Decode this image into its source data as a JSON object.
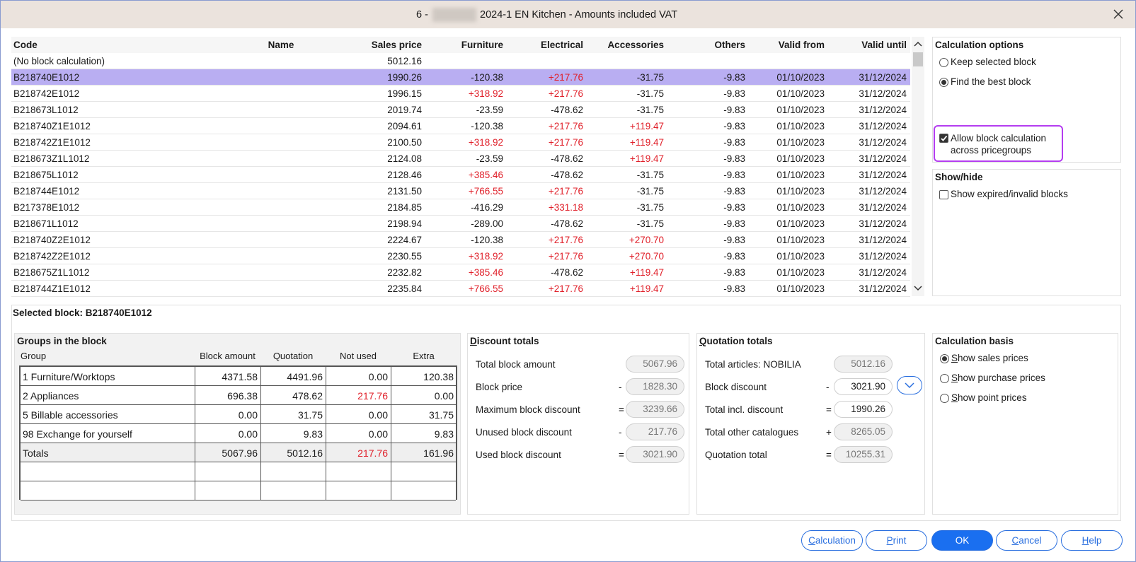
{
  "window": {
    "title_prefix": "6 -",
    "title": "2024-1 EN Kitchen - Amounts included VAT"
  },
  "blocks_table": {
    "columns": [
      "Code",
      "Name",
      "Sales price",
      "Furniture",
      "Electrical",
      "Accessories",
      "Others",
      "Valid from",
      "Valid until"
    ],
    "selected_row": 1,
    "rows": [
      [
        "(No block calculation)",
        null,
        "5012.16",
        null,
        null,
        null,
        null,
        null,
        null
      ],
      [
        "B218740E1012",
        null,
        "1990.26",
        "-120.38",
        "+217.76",
        "-31.75",
        "-9.83",
        "01/10/2023",
        "31/12/2024"
      ],
      [
        "B218742E1012",
        null,
        "1996.15",
        "+318.92",
        "+217.76",
        "-31.75",
        "-9.83",
        "01/10/2023",
        "31/12/2024"
      ],
      [
        "B218673L1012",
        null,
        "2019.74",
        "-23.59",
        "-478.62",
        "-31.75",
        "-9.83",
        "01/10/2023",
        "31/12/2024"
      ],
      [
        "B218740Z1E1012",
        null,
        "2094.61",
        "-120.38",
        "+217.76",
        "+119.47",
        "-9.83",
        "01/10/2023",
        "31/12/2024"
      ],
      [
        "B218742Z1E1012",
        null,
        "2100.50",
        "+318.92",
        "+217.76",
        "+119.47",
        "-9.83",
        "01/10/2023",
        "31/12/2024"
      ],
      [
        "B218673Z1L1012",
        null,
        "2124.08",
        "-23.59",
        "-478.62",
        "+119.47",
        "-9.83",
        "01/10/2023",
        "31/12/2024"
      ],
      [
        "B218675L1012",
        null,
        "2128.46",
        "+385.46",
        "-478.62",
        "-31.75",
        "-9.83",
        "01/10/2023",
        "31/12/2024"
      ],
      [
        "B218744E1012",
        null,
        "2131.50",
        "+766.55",
        "+217.76",
        "-31.75",
        "-9.83",
        "01/10/2023",
        "31/12/2024"
      ],
      [
        "B217378E1012",
        null,
        "2184.85",
        "-416.29",
        "+331.18",
        "-31.75",
        "-9.83",
        "01/10/2023",
        "31/12/2024"
      ],
      [
        "B218671L1012",
        null,
        "2198.94",
        "-289.00",
        "-478.62",
        "-31.75",
        "-9.83",
        "01/10/2023",
        "31/12/2024"
      ],
      [
        "B218740Z2E1012",
        null,
        "2224.67",
        "-120.38",
        "+217.76",
        "+270.70",
        "-9.83",
        "01/10/2023",
        "31/12/2024"
      ],
      [
        "B218742Z2E1012",
        null,
        "2230.55",
        "+318.92",
        "+217.76",
        "+270.70",
        "-9.83",
        "01/10/2023",
        "31/12/2024"
      ],
      [
        "B218675Z1L1012",
        null,
        "2232.82",
        "+385.46",
        "-478.62",
        "+119.47",
        "-9.83",
        "01/10/2023",
        "31/12/2024"
      ],
      [
        "B218744Z1E1012",
        null,
        "2235.84",
        "+766.55",
        "+217.76",
        "+119.47",
        "-9.83",
        "01/10/2023",
        "31/12/2024"
      ]
    ]
  },
  "calculation_options": {
    "title": "Calculation options",
    "radios": [
      {
        "label": "Keep selected block",
        "checked": false
      },
      {
        "label": "Find the best block",
        "checked": true
      }
    ],
    "checkbox": {
      "lines": [
        "Allow block calculation",
        "across pricegroups"
      ],
      "checked": true
    }
  },
  "show_hide": {
    "title": "Show/hide",
    "checkbox": {
      "label": "Show expired/invalid blocks",
      "checked": false
    }
  },
  "selected_block": "Selected block: B218740E1012",
  "groups": {
    "title": "Groups in the block",
    "columns": [
      "Group",
      "Block amount",
      "Quotation",
      "Not used",
      "Extra"
    ],
    "rows": [
      [
        "1 Furniture/Worktops",
        "4371.58",
        "4491.96",
        "0.00",
        "120.38"
      ],
      [
        "2 Appliances",
        "696.38",
        "478.62",
        "217.76",
        "0.00"
      ],
      [
        "5 Billable accessories",
        "0.00",
        "31.75",
        "0.00",
        "31.75"
      ],
      [
        "98 Exchange for yourself",
        "0.00",
        "9.83",
        "0.00",
        "9.83"
      ],
      [
        "Totals",
        "5067.96",
        "5012.16",
        "217.76",
        "161.96"
      ]
    ]
  },
  "discount_totals": {
    "title": "Discount totals",
    "rows": [
      {
        "label": "Total block amount",
        "value": "5067.96"
      },
      {
        "label": "Block price",
        "op": "-",
        "value": "1828.30"
      },
      {
        "label": "Maximum block discount",
        "op": "=",
        "value": "3239.66"
      },
      {
        "label": "Unused block discount",
        "op": "-",
        "value": "217.76"
      },
      {
        "label": "Used block discount",
        "op": "=",
        "value": "3021.90"
      }
    ]
  },
  "quotation_totals": {
    "title": "Quotation totals",
    "rows": [
      {
        "label": "Total articles: NOBILIA",
        "value": "5012.16"
      },
      {
        "label": "Block discount",
        "op": "-",
        "value": "3021.90"
      },
      {
        "label": "Total incl. discount",
        "op": "=",
        "value": "1990.26"
      },
      {
        "label": "Total other catalogues",
        "op": "+",
        "value": "8265.05"
      },
      {
        "label": "Quotation total",
        "op": "=",
        "value": "10255.31"
      }
    ]
  },
  "calculation_basis": {
    "title": "Calculation basis",
    "radios": [
      {
        "label": "Show sales prices",
        "checked": true
      },
      {
        "label": "Show purchase prices",
        "checked": false
      },
      {
        "label": "Show point prices",
        "checked": false
      }
    ]
  },
  "buttons": [
    "Calculation",
    "Print",
    "OK",
    "Cancel",
    "Help"
  ]
}
